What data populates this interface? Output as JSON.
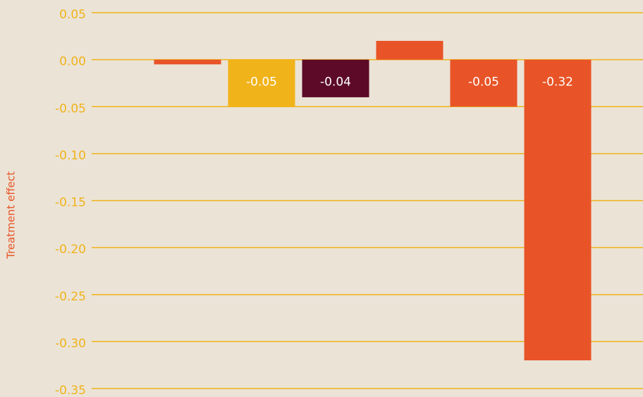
{
  "chart_data": {
    "type": "bar",
    "y_label": "Treatment effect",
    "categories": [
      null,
      null,
      null,
      null,
      null,
      null
    ],
    "values": [
      -0.005,
      -0.05,
      -0.04,
      0.02,
      -0.05,
      -0.32
    ],
    "value_labels": [
      null,
      "-0.05",
      "-0.04",
      null,
      "-0.05",
      "-0.32"
    ],
    "colors": [
      "#e85427",
      "#f0b31a",
      "#5c0a28",
      "#e85427",
      "#e85427",
      "#e85427"
    ],
    "ylim": [
      -0.35,
      0.05
    ],
    "yticks": [
      0.05,
      {
        "value": 0,
        "label": "0.00"
      },
      -0.05,
      {
        "value": -0.1,
        "label": "-0.10"
      },
      -0.15,
      {
        "value": -0.2,
        "label": "-0.20"
      },
      -0.25,
      {
        "value": -0.3,
        "label": "-0.30"
      },
      -0.35
    ],
    "grid": true
  }
}
